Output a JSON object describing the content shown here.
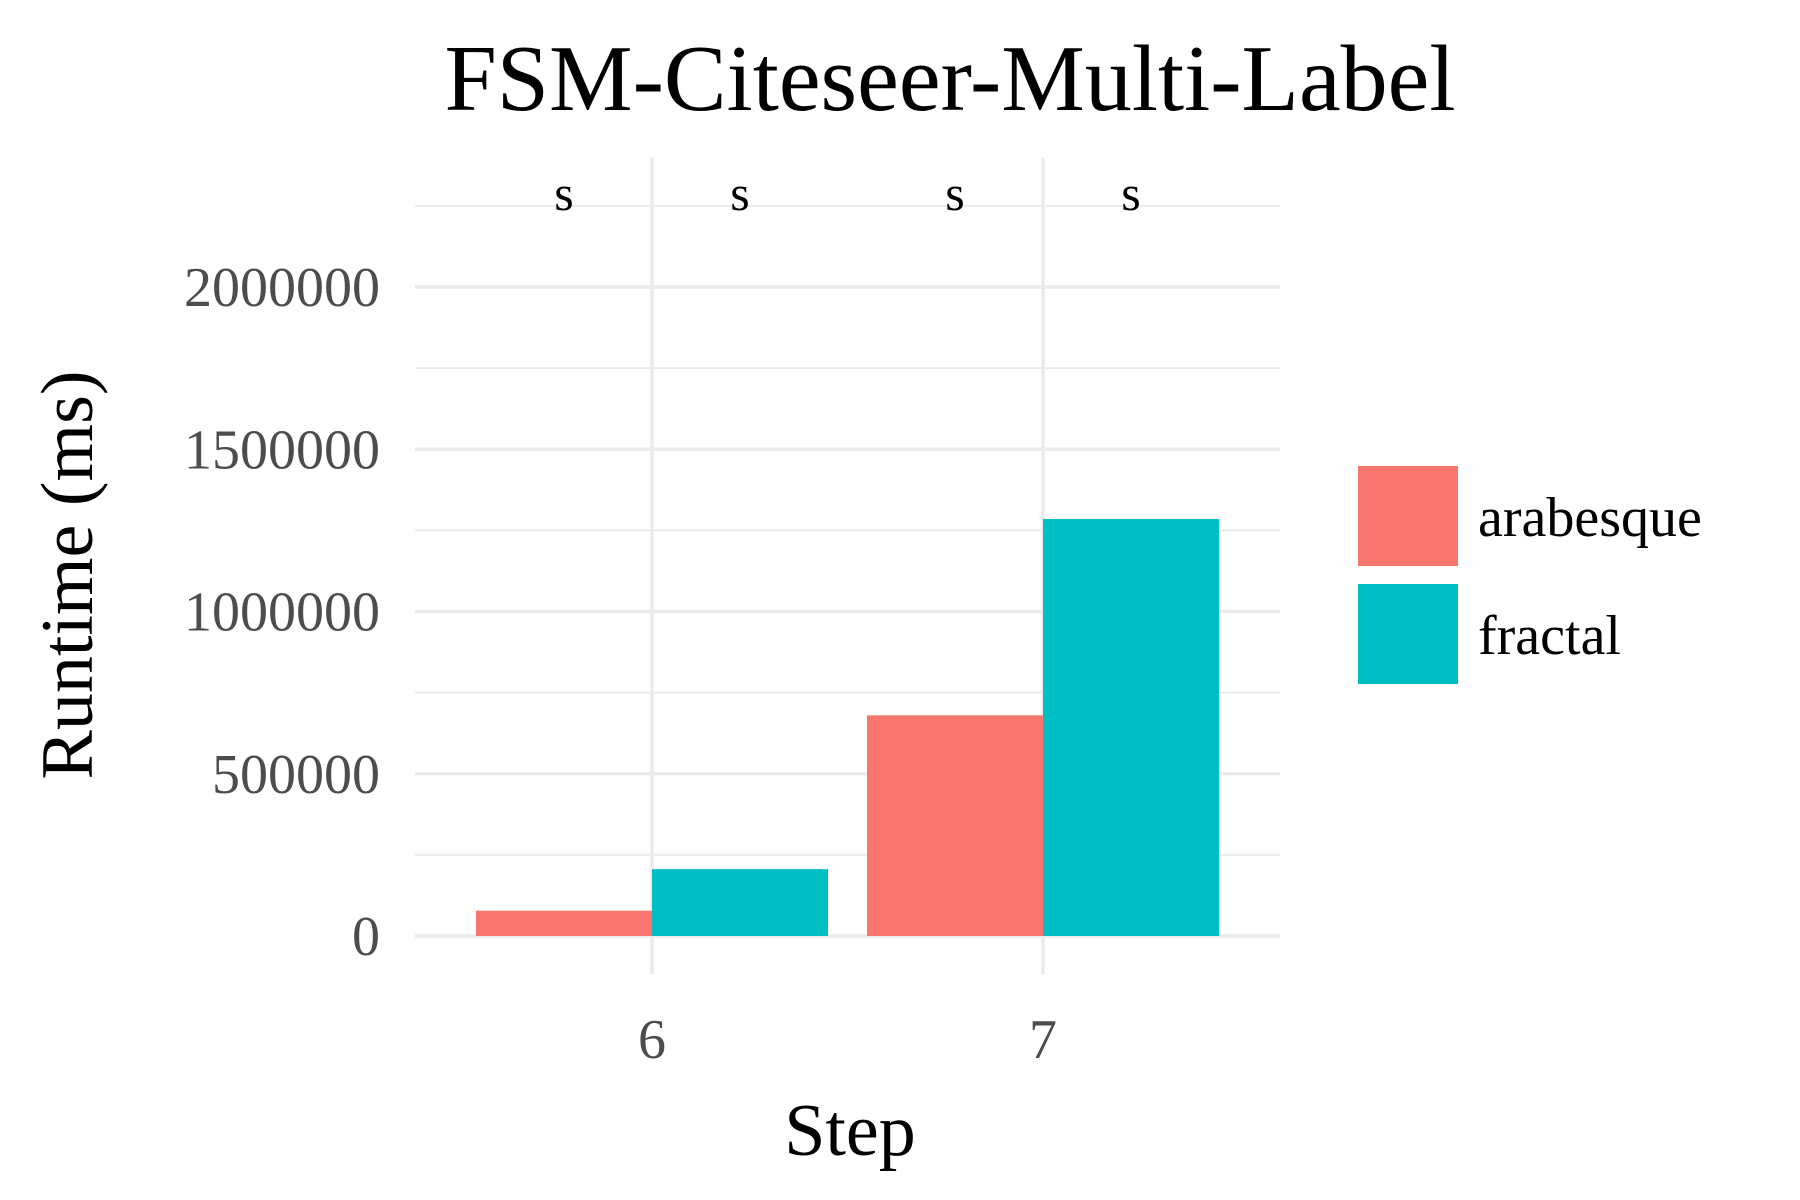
{
  "chart_data": {
    "type": "bar",
    "title": "FSM-Citeseer-Multi-Label",
    "xlabel": "Step",
    "ylabel": "Runtime (ms)",
    "categories": [
      "6",
      "7"
    ],
    "series": [
      {
        "name": "arabesque",
        "values": [
          78000,
          680000
        ],
        "color": "#F8766D"
      },
      {
        "name": "fractal",
        "values": [
          206000,
          1285000
        ],
        "color": "#00BFC4"
      }
    ],
    "ylim": [
      0,
      2250000
    ],
    "yticks": [
      0,
      500000,
      1000000,
      1500000,
      2000000
    ],
    "ytick_labels": [
      "0",
      "500000",
      "1000000",
      "1500000",
      "2000000"
    ],
    "annotations": [
      "s",
      "s",
      "s",
      "s"
    ],
    "grid": true,
    "legend_position": "right"
  }
}
